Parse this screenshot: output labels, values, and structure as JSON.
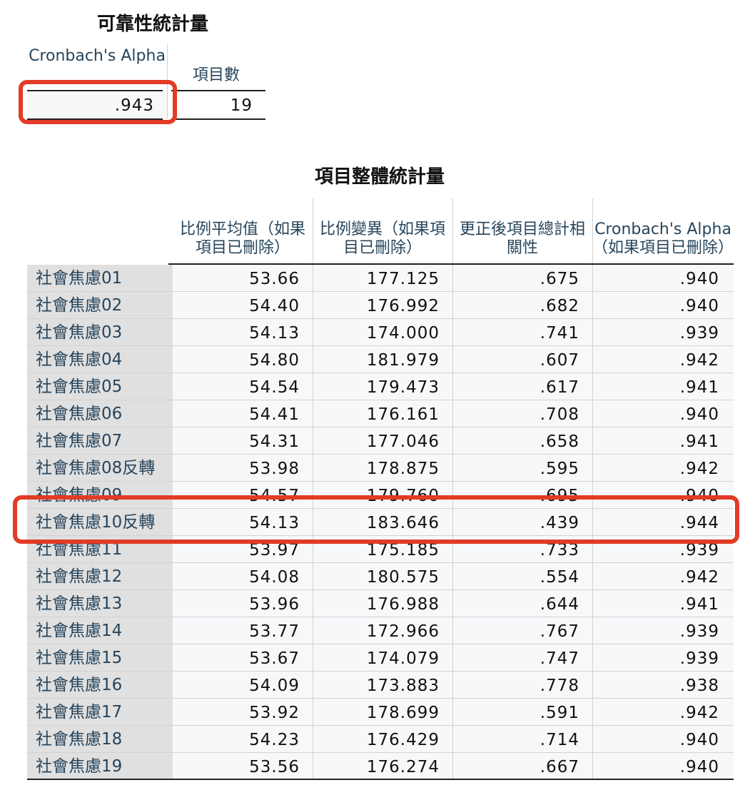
{
  "reliability": {
    "title": "可靠性統計量",
    "headers": [
      "Cronbach's Alpha",
      "項目數"
    ],
    "values": [
      ".943",
      "19"
    ]
  },
  "item_total": {
    "title": "項目整體統計量",
    "headers": [
      "比例平均值（如果項目已刪除）",
      "比例變異（如果項目已刪除）",
      "更正後項目總計相關性",
      "Cronbach's Alpha（如果項目已刪除）"
    ],
    "rows": [
      {
        "label": "社會焦慮01",
        "mean": "53.66",
        "variance": "177.125",
        "corr": ".675",
        "alpha": ".940"
      },
      {
        "label": "社會焦慮02",
        "mean": "54.40",
        "variance": "176.992",
        "corr": ".682",
        "alpha": ".940"
      },
      {
        "label": "社會焦慮03",
        "mean": "54.13",
        "variance": "174.000",
        "corr": ".741",
        "alpha": ".939"
      },
      {
        "label": "社會焦慮04",
        "mean": "54.80",
        "variance": "181.979",
        "corr": ".607",
        "alpha": ".942"
      },
      {
        "label": "社會焦慮05",
        "mean": "54.54",
        "variance": "179.473",
        "corr": ".617",
        "alpha": ".941"
      },
      {
        "label": "社會焦慮06",
        "mean": "54.41",
        "variance": "176.161",
        "corr": ".708",
        "alpha": ".940"
      },
      {
        "label": "社會焦慮07",
        "mean": "54.31",
        "variance": "177.046",
        "corr": ".658",
        "alpha": ".941"
      },
      {
        "label": "社會焦慮08反轉",
        "mean": "53.98",
        "variance": "178.875",
        "corr": ".595",
        "alpha": ".942"
      },
      {
        "label": "社會焦慮09",
        "mean": "54.57",
        "variance": "179.760",
        "corr": ".695",
        "alpha": ".940"
      },
      {
        "label": "社會焦慮10反轉",
        "mean": "54.13",
        "variance": "183.646",
        "corr": ".439",
        "alpha": ".944"
      },
      {
        "label": "社會焦慮11",
        "mean": "53.97",
        "variance": "175.185",
        "corr": ".733",
        "alpha": ".939"
      },
      {
        "label": "社會焦慮12",
        "mean": "54.08",
        "variance": "180.575",
        "corr": ".554",
        "alpha": ".942"
      },
      {
        "label": "社會焦慮13",
        "mean": "53.96",
        "variance": "176.988",
        "corr": ".644",
        "alpha": ".941"
      },
      {
        "label": "社會焦慮14",
        "mean": "53.77",
        "variance": "172.966",
        "corr": ".767",
        "alpha": ".939"
      },
      {
        "label": "社會焦慮15",
        "mean": "53.67",
        "variance": "174.079",
        "corr": ".747",
        "alpha": ".939"
      },
      {
        "label": "社會焦慮16",
        "mean": "54.09",
        "variance": "173.883",
        "corr": ".778",
        "alpha": ".938"
      },
      {
        "label": "社會焦慮17",
        "mean": "53.92",
        "variance": "178.699",
        "corr": ".591",
        "alpha": ".942"
      },
      {
        "label": "社會焦慮18",
        "mean": "54.23",
        "variance": "176.429",
        "corr": ".714",
        "alpha": ".940"
      },
      {
        "label": "社會焦慮19",
        "mean": "53.56",
        "variance": "176.274",
        "corr": ".667",
        "alpha": ".940"
      }
    ]
  },
  "colors": {
    "highlight": "#e23b26",
    "header_text": "#27455c",
    "row_label_bg": "#e0e0e0",
    "cell_bg": "#f7f8fa"
  }
}
